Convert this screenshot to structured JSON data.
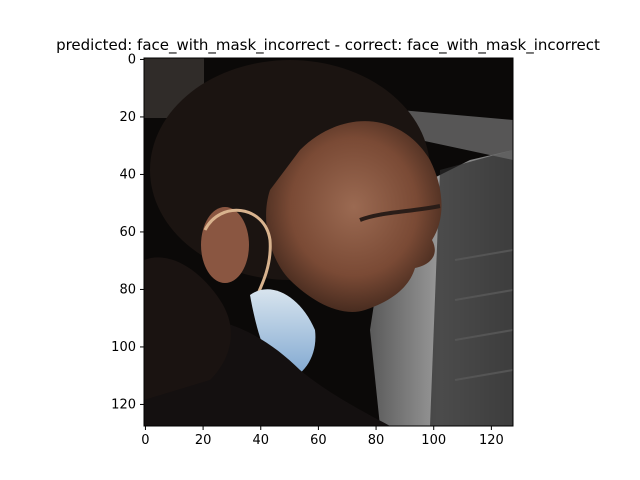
{
  "figure": {
    "title": "predicted: face_with_mask_incorrect - correct: face_with_mask_incorrect"
  },
  "chart_data": {
    "type": "image",
    "title": "predicted: face_with_mask_incorrect - correct: face_with_mask_incorrect",
    "xlabel": "",
    "ylabel": "",
    "xlim": [
      -0.5,
      127.5
    ],
    "ylim": [
      127.5,
      -0.5
    ],
    "x_ticks": [
      0,
      20,
      40,
      60,
      80,
      100,
      120
    ],
    "y_ticks": [
      0,
      20,
      40,
      60,
      80,
      100,
      120
    ],
    "x_tick_labels": [
      "0",
      "20",
      "40",
      "60",
      "80",
      "100",
      "120"
    ],
    "y_tick_labels": [
      "0",
      "20",
      "40",
      "60",
      "80",
      "100",
      "120"
    ],
    "grid": false,
    "image_content": "photo-of-person-wearing-mask-under-chin"
  },
  "colors": {
    "background": "#000000",
    "skin": "#8a5a44",
    "hair": "#1c1410",
    "mask": "#b9d0e6",
    "panel": "#8c8c8c",
    "edge": "#000000"
  }
}
